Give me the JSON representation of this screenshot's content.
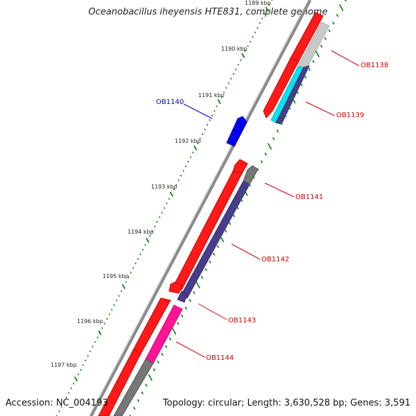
{
  "title": "Oceanobacillus iheyensis HTE831, complete genome",
  "footer": {
    "accession": "Accession: NC_004193",
    "summary": "Topology: circular; Length: 3,630,528 bp; Genes: 3,591"
  },
  "ruler": [
    "1189 kbp",
    "1190 kbp",
    "1191 kbp",
    "1192 kbp",
    "1193 kbp",
    "1194 kbp",
    "1195 kbp",
    "1196 kbp",
    "1197 kbp"
  ],
  "gene_labels": {
    "OB1138": "OB1138",
    "OB1139": "OB1139",
    "OB1140": "OB1140",
    "OB1141": "OB1141",
    "OB1142": "OB1142",
    "OB1143": "OB1143",
    "OB1144": "OB1144"
  },
  "colors": {
    "forward_strand": "#ff0000",
    "reverse_cds": "#483d8b",
    "label_reverse": "#cc0000",
    "label_forward": "#0000cc",
    "tick": "#1a8a1a",
    "backbone": "#888888",
    "cyan": "#00e5ee",
    "pink": "#ff1493",
    "blue": "#0000ff",
    "gray": "#777777",
    "lightgray": "#c8c8c8"
  }
}
